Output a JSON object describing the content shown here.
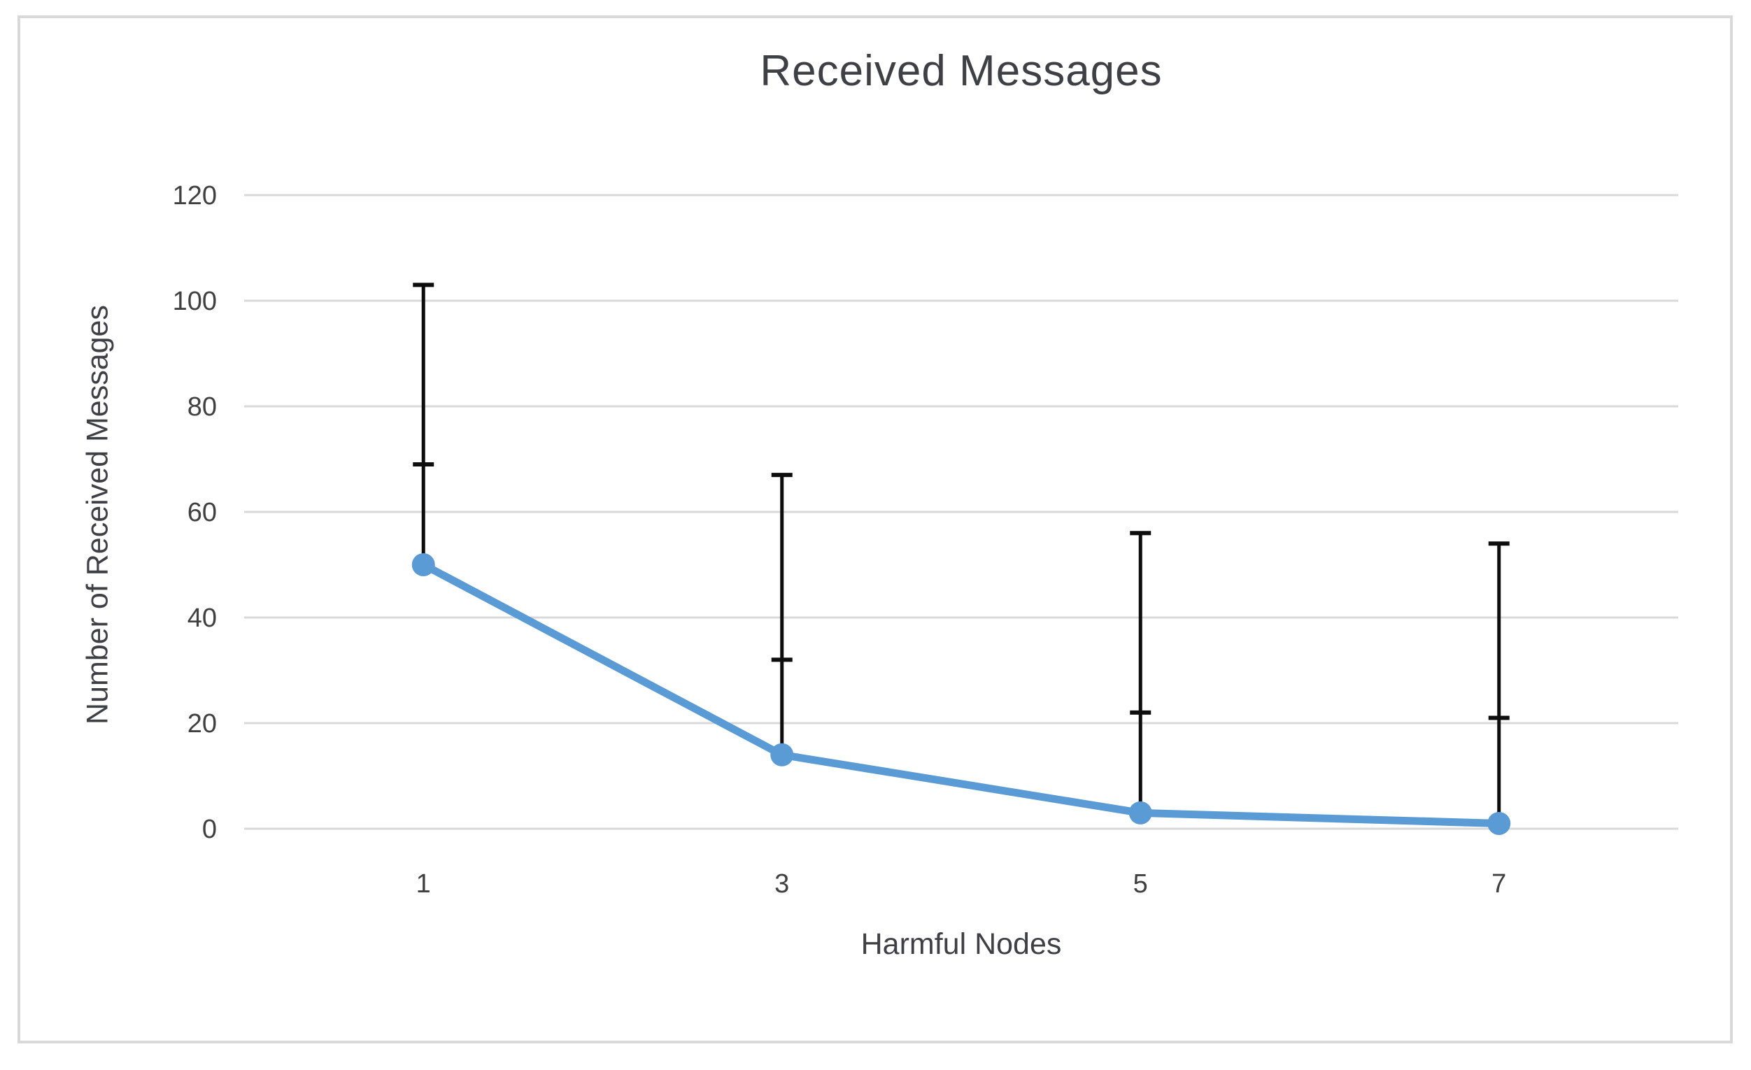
{
  "chart_data": {
    "type": "line",
    "title": "Received Messages",
    "xlabel": "Harmful Nodes",
    "ylabel": "Number of Received Messages",
    "categories": [
      "1",
      "3",
      "5",
      "7"
    ],
    "series": [
      {
        "name": "Received Messages",
        "values": [
          50,
          14,
          3,
          1
        ]
      }
    ],
    "error_bars": {
      "direction": "plus-only",
      "upper_whisker_top_values": [
        103,
        67,
        56,
        54
      ],
      "upper_whisker_inner_cap_values": [
        69,
        32,
        22,
        21
      ]
    },
    "y_ticks": [
      0,
      20,
      40,
      60,
      80,
      100,
      120
    ],
    "ylim": [
      0,
      120
    ],
    "grid": "horizontal",
    "legend": "none",
    "colors": {
      "series_line": "#5b9bd5",
      "marker_fill": "#5b9bd5",
      "error_bar": "#0d0d0d",
      "gridline": "#d9d9d9",
      "frame_border": "#d9d9d9",
      "tick_text": "#404040",
      "title_text": "#3f3f46",
      "background": "#ffffff"
    }
  }
}
